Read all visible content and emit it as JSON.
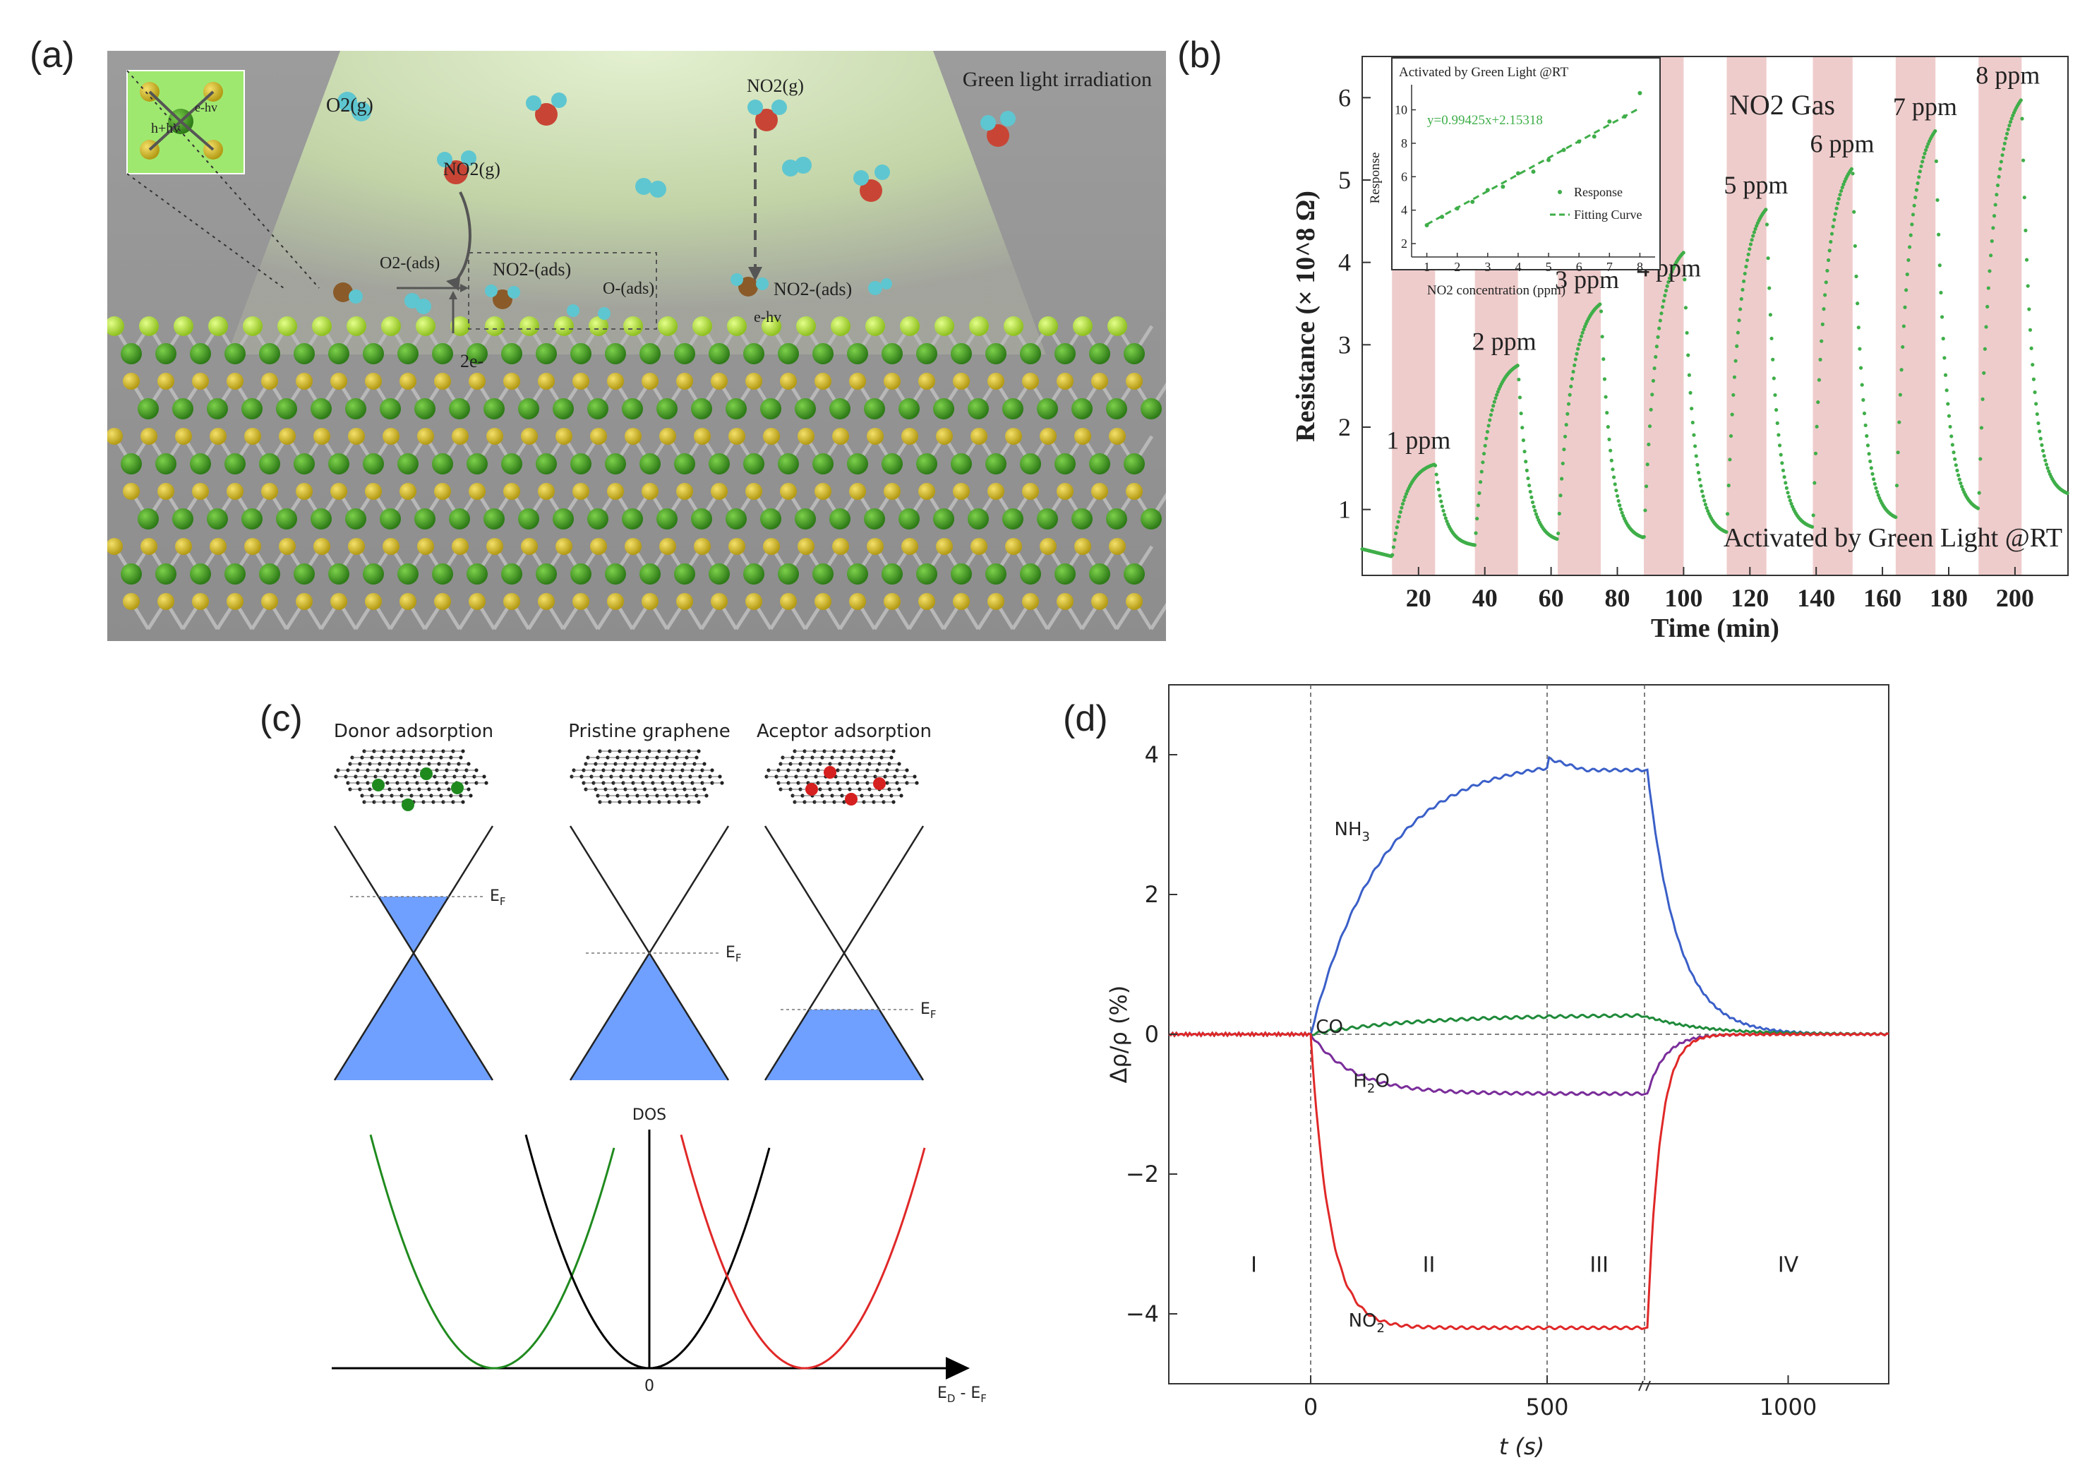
{
  "figure": {
    "panel_labels": [
      "(a)",
      "(b)",
      "(c)",
      "(d)"
    ],
    "colors": {
      "green_curve": "#3fae49",
      "pink_band": "#efcccc",
      "blue_curve": "#3a5fc8",
      "red_curve": "#e02828",
      "purple_curve": "#7a2d9a",
      "dark_green_curve": "#1f8a3a",
      "graphene_fill": "#6fa0ff"
    }
  },
  "panel_a": {
    "title": "Green light irradiation",
    "labels": {
      "o2_gas": "O2(g)",
      "no2_gas_left": "NO2(g)",
      "no2_gas_top": "NO2(g)",
      "o2_ads": "O2-(ads)",
      "no2_ads_mid": "NO2-(ads)",
      "o_ads": "O-(ads)",
      "no2_ads_right": "NO2-(ads)",
      "two_e": "2e-",
      "e_hv": "e-hv",
      "h_hv": "h+hv",
      "e_hv_inset": "e-hv"
    }
  },
  "panel_b": {
    "chart_data": {
      "type": "line",
      "xlabel": "Time (min)",
      "ylabel": "Resistance (× 10^8 Ω)",
      "xlim": [
        3,
        216
      ],
      "ylim": [
        0.2,
        6.5
      ],
      "xticks": [
        20,
        40,
        60,
        80,
        100,
        120,
        140,
        160,
        180,
        200
      ],
      "yticks": [
        1,
        2,
        3,
        4,
        5,
        6
      ],
      "gas_label": "NO2 Gas",
      "footer": "Activated by Green Light @RT",
      "exposures": [
        {
          "label": "1 ppm",
          "start": 12,
          "end": 25,
          "base": 0.42,
          "peak": 1.55
        },
        {
          "label": "2 ppm",
          "start": 37,
          "end": 50,
          "base": 0.55,
          "peak": 2.75
        },
        {
          "label": "3 ppm",
          "start": 62,
          "end": 75,
          "base": 0.6,
          "peak": 3.5
        },
        {
          "label": "4 ppm",
          "start": 88,
          "end": 100,
          "base": 0.62,
          "peak": 4.12
        },
        {
          "label": "5 ppm",
          "start": 113,
          "end": 125,
          "base": 0.68,
          "peak": 4.65
        },
        {
          "label": "6 ppm",
          "start": 139,
          "end": 151,
          "base": 0.75,
          "peak": 5.15
        },
        {
          "label": "7 ppm",
          "start": 164,
          "end": 176,
          "base": 0.85,
          "peak": 5.6
        },
        {
          "label": "8 ppm",
          "start": 189,
          "end": 202,
          "base": 0.95,
          "peak": 5.98
        }
      ],
      "inset": {
        "title": "Activated by Green Light @RT",
        "xlabel": "NO2 concentration (ppm)",
        "ylabel": "Response",
        "xticks": [
          1,
          2,
          3,
          4,
          5,
          6,
          7,
          8
        ],
        "yticks": [
          2,
          4,
          6,
          8,
          10
        ],
        "xlim": [
          0.5,
          8.5
        ],
        "ylim": [
          1.2,
          11.5
        ],
        "equation": "y=0.99425x+2.15318",
        "slope": 0.99425,
        "intercept": 2.15318,
        "legend": [
          "Response",
          "Fitting Curve"
        ],
        "points": [
          [
            1,
            3.1
          ],
          [
            1.5,
            3.6
          ],
          [
            2,
            4.1
          ],
          [
            2.5,
            4.5
          ],
          [
            3,
            5.2
          ],
          [
            3.5,
            5.4
          ],
          [
            4,
            6.2
          ],
          [
            4.5,
            6.3
          ],
          [
            5,
            7.0
          ],
          [
            5.5,
            7.6
          ],
          [
            6,
            8.1
          ],
          [
            6.5,
            8.4
          ],
          [
            7,
            9.3
          ],
          [
            7.5,
            9.6
          ],
          [
            8,
            11.0
          ]
        ]
      }
    }
  },
  "panel_c": {
    "titles": [
      "Donor adsorption",
      "Pristine graphene",
      "Aceptor adsorption"
    ],
    "fermi_label": "E",
    "fermi_sub": "F",
    "dos_label": "DOS",
    "x_axis_label": "E",
    "x_axis_sub_d": "D",
    "x_axis_rest": " - E",
    "x_axis_sub_f": "F",
    "origin_label": "0",
    "chart_data": {
      "type": "line",
      "description_series": [
        {
          "name": "donor",
          "center": -2.2
        },
        {
          "name": "pristine",
          "center": 0
        },
        {
          "name": "acceptor",
          "center": 2.2
        }
      ]
    }
  },
  "panel_d": {
    "chart_data": {
      "type": "line",
      "xlabel": "t (s)",
      "ylabel": "Δρ/ρ (%)",
      "xlim": [
        -300,
        1200
      ],
      "ylim": [
        -5,
        5
      ],
      "xticks": [
        0,
        500,
        1000
      ],
      "yticks": [
        4,
        2,
        0,
        -2,
        -4
      ],
      "regions": [
        "I",
        "II",
        "III",
        "IV"
      ],
      "vlines": [
        0,
        500,
        720
      ],
      "series": [
        {
          "name": "NH3",
          "plateau": 3.78,
          "peak": 3.95
        },
        {
          "name": "CO",
          "plateau": 0.25,
          "peak": 0.28
        },
        {
          "name": "H2O",
          "plateau": -0.85,
          "peak": -0.85
        },
        {
          "name": "NO2",
          "plateau": -4.2,
          "peak": -4.2
        }
      ],
      "series_labels": {
        "nh3": "NH",
        "nh3_sub": "3",
        "co": "CO",
        "h2o": "H",
        "h2o_sub": "2",
        "h2o_rest": "O",
        "no2": "NO",
        "no2_sub": "2"
      }
    }
  }
}
